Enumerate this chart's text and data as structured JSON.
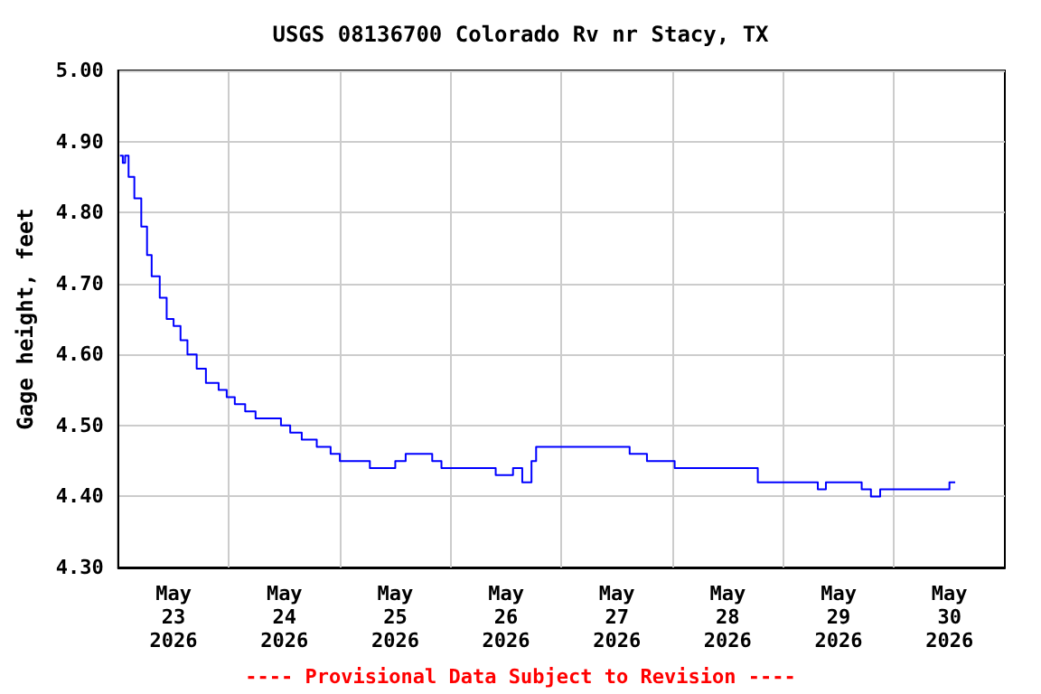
{
  "chart_data": {
    "type": "step",
    "title": "USGS 08136700 Colorado Rv nr Stacy, TX",
    "ylabel": "Gage height, feet",
    "annotations": [
      "---- Provisional Data Subject to Revision ----"
    ],
    "x": [
      "2026-05-23T00:23",
      "2026-05-23T01:00",
      "2026-05-23T01:30",
      "2026-05-23T02:15",
      "2026-05-23T03:30",
      "2026-05-23T05:00",
      "2026-05-23T06:15",
      "2026-05-23T07:15",
      "2026-05-23T09:00",
      "2026-05-23T10:30",
      "2026-05-23T12:00",
      "2026-05-23T13:30",
      "2026-05-23T15:00",
      "2026-05-23T17:00",
      "2026-05-23T19:00",
      "2026-05-23T21:45",
      "2026-05-23T23:30",
      "2026-05-24T01:15",
      "2026-05-24T03:30",
      "2026-05-24T05:45",
      "2026-05-24T09:15",
      "2026-05-24T11:15",
      "2026-05-24T13:15",
      "2026-05-24T15:45",
      "2026-05-24T19:00",
      "2026-05-24T22:00",
      "2026-05-25T00:00",
      "2026-05-25T04:30",
      "2026-05-25T06:30",
      "2026-05-25T09:45",
      "2026-05-25T12:00",
      "2026-05-25T14:15",
      "2026-05-25T20:00",
      "2026-05-25T22:00",
      "2026-05-26T07:45",
      "2026-05-26T09:45",
      "2026-05-26T13:30",
      "2026-05-26T15:30",
      "2026-05-26T17:30",
      "2026-05-26T18:30",
      "2026-05-27T12:45",
      "2026-05-27T14:45",
      "2026-05-27T18:30",
      "2026-05-28T00:30",
      "2026-05-28T12:00",
      "2026-05-28T18:30",
      "2026-05-29T05:30",
      "2026-05-29T07:30",
      "2026-05-29T09:15",
      "2026-05-29T15:00",
      "2026-05-29T17:00",
      "2026-05-29T19:00",
      "2026-05-29T21:00",
      "2026-05-30T10:30",
      "2026-05-30T12:00",
      "2026-05-30T13:15"
    ],
    "series": [
      {
        "color": "#0000ff",
        "values": [
          4.88,
          4.87,
          4.88,
          4.85,
          4.82,
          4.78,
          4.74,
          4.71,
          4.68,
          4.65,
          4.64,
          4.62,
          4.6,
          4.58,
          4.56,
          4.55,
          4.54,
          4.53,
          4.52,
          4.51,
          4.51,
          4.5,
          4.49,
          4.48,
          4.47,
          4.46,
          4.45,
          4.45,
          4.44,
          4.44,
          4.45,
          4.46,
          4.45,
          4.44,
          4.44,
          4.43,
          4.44,
          4.42,
          4.45,
          4.47,
          4.47,
          4.46,
          4.45,
          4.44,
          4.44,
          4.42,
          4.42,
          4.41,
          4.42,
          4.42,
          4.41,
          4.4,
          4.41,
          4.41,
          4.42,
          4.42
        ]
      }
    ],
    "xlim": [
      "2026-05-23T00:00",
      "2026-05-31T00:00"
    ],
    "xticks": [
      {
        "value": "2026-05-23T12:00",
        "label": "May\n23\n2026"
      },
      {
        "value": "2026-05-24T12:00",
        "label": "May\n24\n2026"
      },
      {
        "value": "2026-05-25T12:00",
        "label": "May\n25\n2026"
      },
      {
        "value": "2026-05-26T12:00",
        "label": "May\n26\n2026"
      },
      {
        "value": "2026-05-27T12:00",
        "label": "May\n27\n2026"
      },
      {
        "value": "2026-05-28T12:00",
        "label": "May\n28\n2026"
      },
      {
        "value": "2026-05-29T12:00",
        "label": "May\n29\n2026"
      },
      {
        "value": "2026-05-30T12:00",
        "label": "May\n30\n2026"
      },
      {
        "value": "2026-05-24T00:00",
        "label": null
      },
      {
        "value": "2026-05-25T00:00",
        "label": null
      },
      {
        "value": "2026-05-26T00:00",
        "label": null
      },
      {
        "value": "2026-05-27T00:00",
        "label": null
      },
      {
        "value": "2026-05-28T00:00",
        "label": null
      },
      {
        "value": "2026-05-29T00:00",
        "label": null
      },
      {
        "value": "2026-05-30T00:00",
        "label": null
      }
    ],
    "ylim": [
      4.3,
      5.0
    ],
    "yticks": [
      {
        "value": 4.3,
        "label": "4.30"
      },
      {
        "value": 4.4,
        "label": "4.40"
      },
      {
        "value": 4.5,
        "label": "4.50"
      },
      {
        "value": 4.6,
        "label": "4.60"
      },
      {
        "value": 4.7,
        "label": "4.70"
      },
      {
        "value": 4.8,
        "label": "4.80"
      },
      {
        "value": 4.9,
        "label": "4.90"
      },
      {
        "value": 5.0,
        "label": "5.00"
      }
    ],
    "grid": true,
    "marker": "none",
    "line_style": "solid"
  }
}
